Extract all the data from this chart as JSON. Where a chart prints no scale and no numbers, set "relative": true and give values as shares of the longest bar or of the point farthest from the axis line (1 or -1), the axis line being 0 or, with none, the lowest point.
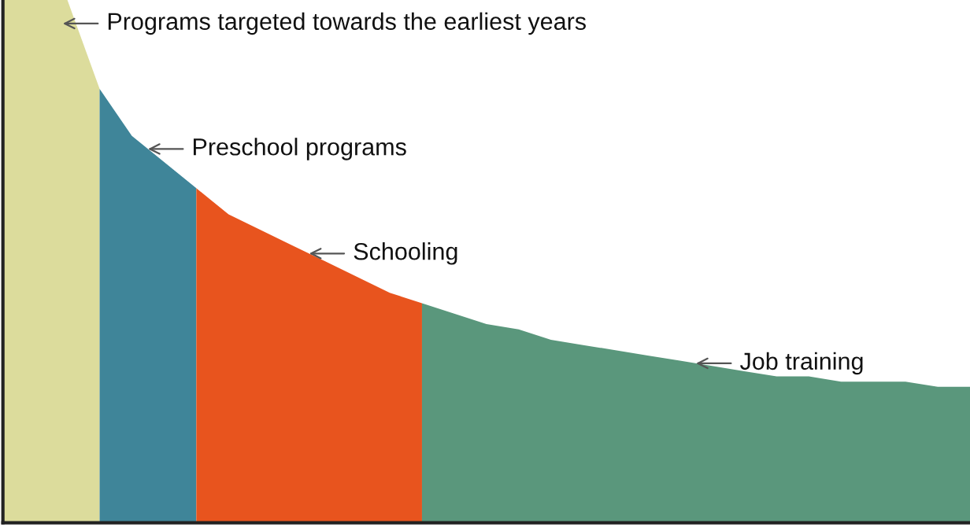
{
  "chart_data": {
    "type": "area",
    "relative": true,
    "categories": [
      null,
      null,
      null,
      null,
      null,
      null,
      null,
      null,
      null,
      null,
      null,
      null,
      null,
      null,
      null,
      null,
      null,
      null,
      null,
      null,
      null,
      null,
      null,
      null,
      null,
      null,
      null,
      null,
      null,
      null,
      null
    ],
    "series": [
      {
        "color": "#dcdc9c",
        "values": [
          1.0,
          1.0,
          1.0,
          0.83,
          null,
          null,
          null,
          null,
          null,
          null,
          null,
          null,
          null,
          null,
          null,
          null,
          null,
          null,
          null,
          null,
          null,
          null,
          null,
          null,
          null,
          null,
          null,
          null,
          null,
          null,
          null
        ]
      },
      {
        "color": "#3f8599",
        "values": [
          null,
          null,
          null,
          0.83,
          0.74,
          0.69,
          0.64,
          null,
          null,
          null,
          null,
          null,
          null,
          null,
          null,
          null,
          null,
          null,
          null,
          null,
          null,
          null,
          null,
          null,
          null,
          null,
          null,
          null,
          null,
          null,
          null
        ]
      },
      {
        "color": "#e8541e",
        "values": [
          null,
          null,
          null,
          null,
          null,
          null,
          0.64,
          0.59,
          0.56,
          0.53,
          0.5,
          0.47,
          0.44,
          0.42,
          null,
          null,
          null,
          null,
          null,
          null,
          null,
          null,
          null,
          null,
          null,
          null,
          null,
          null,
          null,
          null,
          null
        ]
      },
      {
        "color": "#5a977c",
        "values": [
          null,
          null,
          null,
          null,
          null,
          null,
          null,
          null,
          null,
          null,
          null,
          null,
          null,
          0.42,
          0.4,
          0.38,
          0.37,
          0.35,
          0.34,
          0.33,
          0.32,
          0.31,
          0.3,
          0.29,
          0.28,
          0.28,
          0.27,
          0.27,
          0.27,
          0.26,
          0.26
        ]
      }
    ],
    "annotations": [
      "Programs targeted towards the earliest years",
      "Preschool programs",
      "Schooling",
      "Job training"
    ]
  }
}
